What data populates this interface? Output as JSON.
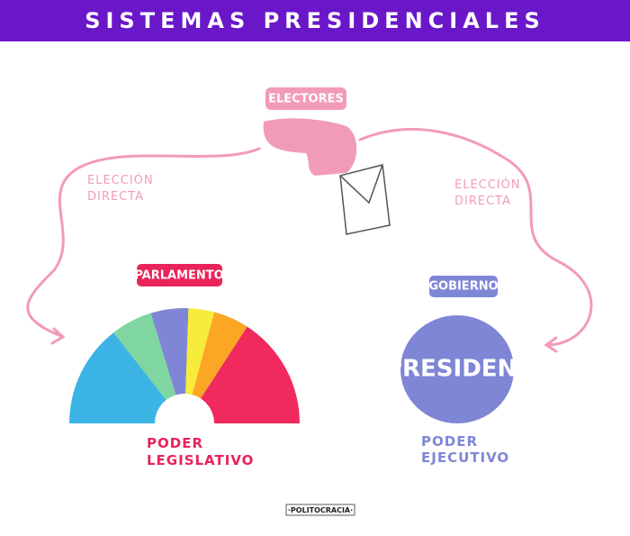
{
  "header": {
    "title": "SISTEMAS PRESIDENCIALES"
  },
  "nodes": [
    {
      "label": "ELECTORES"
    },
    {
      "label": "PARLAMENTO",
      "caption": [
        "PODER",
        "LEGISLATIVO"
      ]
    },
    {
      "label": "GOBIERNO",
      "inner": "PRESIDENT",
      "caption": [
        "PODER",
        "EJECUTIVO"
      ]
    }
  ],
  "edges": [
    {
      "label": [
        "ELECCIÓN",
        "DIRECTA"
      ]
    },
    {
      "label": [
        "ELECCIÓN",
        "DIRECTA"
      ]
    }
  ],
  "footer": {
    "brand": "·POLITOCRACIA·"
  }
}
